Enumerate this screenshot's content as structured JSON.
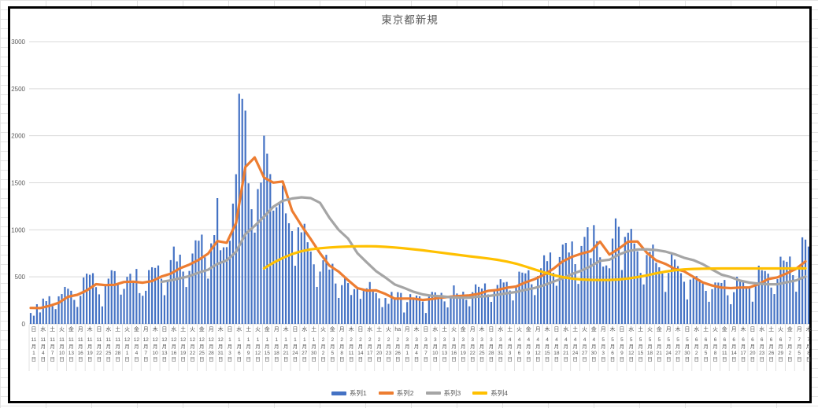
{
  "chart_data": {
    "type": "combo",
    "title": "東京都新規",
    "xlabel": "",
    "ylabel": "",
    "ylim": [
      0,
      3000
    ],
    "yticks": [
      0,
      500,
      1000,
      1500,
      2000,
      2500,
      3000
    ],
    "grid": true,
    "legend_position": "bottom",
    "colors": {
      "bar": "#4472C4",
      "line2": "#ED7D31",
      "line3": "#A5A5A5",
      "line4": "#FFC000",
      "gridline": "#D9D9D9",
      "axis_text": "#595959",
      "title_text": "#595959",
      "frame_border": "#000000",
      "sheet_line": "#e3e3e3"
    },
    "x_start_date": "11月1日",
    "x_label_step_days": 3,
    "x_labels": [
      [
        "日",
        "11",
        "1"
      ],
      [
        "水",
        "11",
        "4"
      ],
      [
        "土",
        "11",
        "7"
      ],
      [
        "火",
        "11",
        "10"
      ],
      [
        "金",
        "11",
        "13"
      ],
      [
        "月",
        "11",
        "16"
      ],
      [
        "木",
        "11",
        "19"
      ],
      [
        "日",
        "11",
        "22"
      ],
      [
        "水",
        "11",
        "25"
      ],
      [
        "土",
        "11",
        "28"
      ],
      [
        "火",
        "12",
        "1"
      ],
      [
        "金",
        "12",
        "4"
      ],
      [
        "月",
        "12",
        "7"
      ],
      [
        "木",
        "12",
        "10"
      ],
      [
        "日",
        "12",
        "13"
      ],
      [
        "水",
        "12",
        "16"
      ],
      [
        "土",
        "12",
        "19"
      ],
      [
        "火",
        "12",
        "22"
      ],
      [
        "金",
        "12",
        "25"
      ],
      [
        "月",
        "12",
        "28"
      ],
      [
        "木",
        "12",
        "31"
      ],
      [
        "日",
        "1",
        "3"
      ],
      [
        "水",
        "1",
        "6"
      ],
      [
        "土",
        "1",
        "9"
      ],
      [
        "火",
        "1",
        "12"
      ],
      [
        "金",
        "1",
        "15"
      ],
      [
        "月",
        "1",
        "18"
      ],
      [
        "木",
        "1",
        "21"
      ],
      [
        "日",
        "1",
        "24"
      ],
      [
        "水",
        "1",
        "27"
      ],
      [
        "土",
        "1",
        "30"
      ],
      [
        "火",
        "2",
        "2"
      ],
      [
        "金",
        "2",
        "5"
      ],
      [
        "月",
        "2",
        "8"
      ],
      [
        "木",
        "2",
        "11"
      ],
      [
        "日",
        "2",
        "14"
      ],
      [
        "水",
        "2",
        "17"
      ],
      [
        "土",
        "2",
        "20"
      ],
      [
        "火",
        "2",
        "23"
      ],
      [
        "ha",
        "2",
        "26"
      ],
      [
        "月",
        "3",
        "1"
      ],
      [
        "木",
        "3",
        "4"
      ],
      [
        "日",
        "3",
        "7"
      ],
      [
        "水",
        "3",
        "10"
      ],
      [
        "土",
        "3",
        "13"
      ],
      [
        "火",
        "3",
        "16"
      ],
      [
        "金",
        "3",
        "19"
      ],
      [
        "月",
        "3",
        "22"
      ],
      [
        "木",
        "3",
        "25"
      ],
      [
        "日",
        "3",
        "28"
      ],
      [
        "水",
        "3",
        "31"
      ],
      [
        "土",
        "4",
        "3"
      ],
      [
        "火",
        "4",
        "6"
      ],
      [
        "金",
        "4",
        "9"
      ],
      [
        "月",
        "4",
        "12"
      ],
      [
        "木",
        "4",
        "15"
      ],
      [
        "日",
        "4",
        "18"
      ],
      [
        "水",
        "4",
        "21"
      ],
      [
        "土",
        "4",
        "24"
      ],
      [
        "火",
        "4",
        "27"
      ],
      [
        "金",
        "4",
        "30"
      ],
      [
        "月",
        "5",
        "3"
      ],
      [
        "木",
        "5",
        "6"
      ],
      [
        "日",
        "5",
        "9"
      ],
      [
        "水",
        "5",
        "12"
      ],
      [
        "土",
        "5",
        "15"
      ],
      [
        "火",
        "5",
        "18"
      ],
      [
        "金",
        "5",
        "21"
      ],
      [
        "月",
        "5",
        "24"
      ],
      [
        "木",
        "5",
        "27"
      ],
      [
        "日",
        "5",
        "30"
      ],
      [
        "水",
        "6",
        "2"
      ],
      [
        "土",
        "6",
        "5"
      ],
      [
        "火",
        "6",
        "8"
      ],
      [
        "金",
        "6",
        "11"
      ],
      [
        "月",
        "6",
        "14"
      ],
      [
        "木",
        "6",
        "17"
      ],
      [
        "日",
        "6",
        "20"
      ],
      [
        "水",
        "6",
        "23"
      ],
      [
        "土",
        "6",
        "26"
      ],
      [
        "火",
        "6",
        "29"
      ],
      [
        "金",
        "7",
        "2"
      ],
      [
        "月",
        "7",
        "5"
      ],
      [
        "木",
        "7",
        "8"
      ]
    ],
    "series": [
      {
        "name": "系列1",
        "type": "bar",
        "color": "#4472C4",
        "start_day": 0,
        "step": 1,
        "values": [
          116,
          87,
          209,
          122,
          269,
          242,
          294,
          189,
          157,
          293,
          317,
          393,
          374,
          352,
          255,
          180,
          298,
          493,
          534,
          522,
          539,
          391,
          314,
          186,
          401,
          481,
          570,
          561,
          418,
          311,
          372,
          500,
          533,
          449,
          584,
          327,
          299,
          352,
          572,
          602,
          595,
          621,
          480,
          305,
          460,
          678,
          822,
          664,
          736,
          556,
          392,
          563,
          748,
          888,
          884,
          949,
          708,
          481,
          856,
          944,
          1337,
          783,
          814,
          816,
          884,
          1278,
          1591,
          2447,
          2392,
          2268,
          1494,
          1219,
          970,
          1433,
          1502,
          2001,
          1809,
          1592,
          1204,
          1240,
          1274,
          1471,
          1175,
          1070,
          986,
          618,
          1026,
          973,
          1064,
          868,
          769,
          633,
          393,
          556,
          676,
          734,
          577,
          639,
          429,
          276,
          412,
          491,
          434,
          307,
          369,
          371,
          266,
          350,
          378,
          445,
          353,
          327,
          272,
          178,
          275,
          213,
          340,
          270,
          337,
          329,
          121,
          232,
          316,
          279,
          301,
          293,
          237,
          116,
          290,
          340,
          335,
          304,
          330,
          239,
          175,
          300,
          409,
          323,
          303,
          342,
          256,
          187,
          337,
          420,
          394,
          376,
          430,
          313,
          234,
          364,
          414,
          475,
          440,
          446,
          355,
          249,
          399,
          555,
          545,
          537,
          570,
          421,
          306,
          510,
          591,
          729,
          667,
          759,
          543,
          405,
          711,
          843,
          861,
          759,
          876,
          635,
          425,
          828,
          925,
          1027,
          698,
          1050,
          879,
          708,
          609,
          621,
          591,
          907,
          1121,
          1032,
          573,
          925,
          969,
          1010,
          854,
          772,
          542,
          419,
          732,
          766,
          843,
          649,
          602,
          535,
          340,
          542,
          743,
          684,
          614,
          539,
          448,
          260,
          471,
          487,
          508,
          472,
          436,
          351,
          235,
          369,
          440,
          439,
          435,
          467,
          304,
          209,
          337,
          501,
          452,
          453,
          388,
          376,
          236,
          435,
          619,
          570,
          562,
          534,
          386,
          317,
          476,
          714,
          673,
          660,
          716,
          518,
          342,
          593,
          920,
          896,
          822
        ]
      },
      {
        "name": "系列2",
        "type": "line",
        "color": "#ED7D31",
        "start_day": 0,
        "step": 3,
        "values": [
          170,
          168,
          191,
          224,
          288,
          309,
          355,
          422,
          412,
          415,
          445,
          449,
          438,
          455,
          503,
          534,
          592,
          630,
          681,
          746,
          880,
          862,
          1072,
          1668,
          1769,
          1555,
          1502,
          1513,
          1203,
          1046,
          901,
          751,
          620,
          555,
          465,
          380,
          354,
          356,
          318,
          268,
          269,
          269,
          254,
          265,
          279,
          289,
          297,
          303,
          320,
          351,
          361,
          384,
          397,
          441,
          476,
          523,
          586,
          665,
          714,
          747,
          773,
          874,
          737,
          798,
          874,
          876,
          757,
          675,
          638,
          585,
          559,
          500,
          440,
          408,
          386,
          380,
          386,
          388,
          423,
          476,
          495,
          537,
          586,
          664
        ]
      },
      {
        "name": "系列3",
        "type": "line",
        "color": "#A5A5A5",
        "start_day": 42,
        "step": 3,
        "values": [
          446,
          463,
          485,
          507,
          545,
          576,
          638,
          675,
          766,
          954,
          1042,
          1140,
          1245,
          1309,
          1333,
          1345,
          1337,
          1287,
          1128,
          999,
          907,
          751,
          654,
          561,
          493,
          419,
          383,
          342,
          313,
          298,
          293,
          283,
          278,
          278,
          290,
          296,
          309,
          326,
          339,
          362,
          382,
          411,
          449,
          485,
          531,
          566,
          613,
          670,
          682,
          736,
          774,
          791,
          793,
          785,
          769,
          740,
          703,
          678,
          635,
          578,
          524,
          497,
          460,
          439,
          427,
          421,
          421,
          442,
          462,
          503
        ]
      },
      {
        "name": "系列4",
        "type": "line",
        "color": "#FFC000",
        "start_day": 75,
        "step": 3,
        "values": [
          590,
          650,
          700,
          742,
          772,
          792,
          804,
          812,
          818,
          822,
          825,
          826,
          824,
          819,
          812,
          803,
          793,
          782,
          770,
          757,
          744,
          731,
          719,
          707,
          695,
          681,
          663,
          640,
          610,
          578,
          547,
          519,
          497,
          481,
          472,
          468,
          466,
          467,
          472,
          482,
          497,
          516,
          537,
          556,
          570,
          579,
          584,
          587,
          588,
          589,
          589,
          589,
          589,
          589,
          589,
          589,
          589,
          590,
          590
        ]
      }
    ],
    "legend": [
      "系列1",
      "系列2",
      "系列3",
      "系列4"
    ]
  }
}
